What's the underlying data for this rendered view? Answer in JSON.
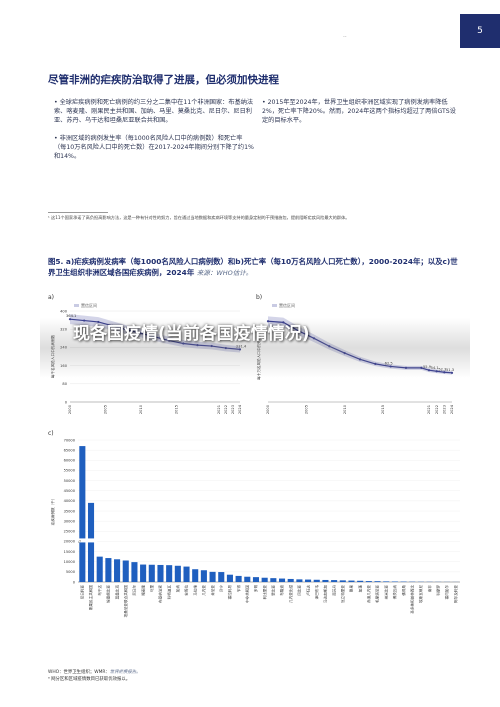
{
  "header": {
    "dots": "··",
    "page_number": "5"
  },
  "title": "尽管非洲的疟疾防治取得了进展，但必须加快进程",
  "bullets_left": [
    "• 全球疟疾病例和死亡病例的约三分之二集中在11个非洲国家：布基纳法索、喀麦隆、刚果民主共和国、加纳、马里、莫桑比克、尼日尔、尼日利亚、苏丹、乌干达和坦桑尼亚联合共和国。",
    "• 非洲区域的病例发生率（每1000名风险人口中的病例数）和死亡率（每10万名风险人口中的死亡数）在2017-2024年期间分别下降了约1%和14%。"
  ],
  "bullets_right": [
    "• 2015年至2024年，世界卫生组织非洲区域实现了病例发病率降低2%，死亡率下降20%。然而，2024年这两个指标均超过了两倍GTS设定的目标水平。"
  ],
  "footnote": "¹ 这11个国家承诺了高负担高影响方法，这是一种有针对性的努力，旨在通过当地数据和疾病环境等支持的量身定制的干预措施包，提前阻断疟疾风险最大的群体。",
  "figure_title": "图5. a)疟疾病例发病率（每1000名风险人口病例数）和b)死亡率（每10万名风险人口死亡数），2000-2024年；以及c)世界卫生组织非洲区域各国疟疾病例，2024年",
  "figure_source": "来源：WHO估计。",
  "overlay_text": "现各国疫情(当前各国疫情情况)",
  "notes": {
    "line1_prefix": "WHO：世界卫生组织；WMR：",
    "line1_italic": "世界疟疾报告。",
    "line2": "ᵃ 网分区和区域疫情数目已获取优效报以。"
  },
  "colors": {
    "navy": "#1f2e6e",
    "line": "#3a3f8f",
    "band": "#c9cbe3",
    "bar": "#1f5fbf",
    "bar_light": "#5f8fd8"
  },
  "chart_data": [
    {
      "panel": "a)",
      "type": "line",
      "legend": [
        "置信区间"
      ],
      "ylabel": "每千名风险人口中的病例数",
      "ylim": [
        0,
        400
      ],
      "yticks": [
        0,
        80,
        160,
        240,
        320,
        400
      ],
      "xticks": [
        "2000",
        "2005",
        "2010",
        "2015",
        "2021",
        "2022",
        "2023",
        "2024"
      ],
      "x": [
        2000,
        2002,
        2004,
        2006,
        2008,
        2010,
        2012,
        2014,
        2016,
        2018,
        2020,
        2022,
        2024
      ],
      "y": [
        364.1,
        358,
        352,
        335,
        318,
        302,
        286,
        270,
        257,
        250,
        246,
        237,
        231.4
      ],
      "labels": [
        "364.1",
        "231.4"
      ]
    },
    {
      "panel": "b)",
      "type": "line",
      "legend": [
        "置信区间"
      ],
      "ylabel": "每十万名风险人口中的死亡数",
      "ylim": [
        0,
        160
      ],
      "xticks": [
        "2000",
        "2005",
        "2010",
        "2015",
        "2021",
        "2022",
        "2023",
        "2024"
      ],
      "x": [
        2000,
        2002,
        2004,
        2006,
        2008,
        2010,
        2012,
        2014,
        2016,
        2018,
        2020,
        2021,
        2022,
        2023,
        2024
      ],
      "y": [
        142,
        140,
        125,
        112,
        98,
        86,
        75,
        67,
        62.5,
        60,
        60,
        55.9,
        54.1,
        52.3,
        51.3
      ],
      "labels": [
        "62.5",
        "55.9",
        "54.1",
        "52.3",
        "51.3"
      ]
    },
    {
      "panel": "c)",
      "type": "bar",
      "ylabel": "疟疾病例数（千）",
      "yticks": [
        0,
        5000,
        10000,
        15000,
        20000,
        25000,
        30000,
        35000,
        40000,
        45000,
        50000,
        55000,
        60000,
        65000,
        70000
      ],
      "axis_break": true,
      "categories": [
        "尼日利亚",
        "刚果民主共和国",
        "乌干达",
        "埃塞俄比亚",
        "莫桑比克",
        "坦桑尼亚联合共和国",
        "尼日尔",
        "喀麦隆",
        "马里",
        "布基纳法索",
        "科特迪瓦",
        "加纳",
        "安哥拉",
        "马拉维",
        "几内亚",
        "肯尼亚",
        "贝宁",
        "塞拉利昂",
        "乍得",
        "中非共和国",
        "多哥",
        "利比里亚",
        "赞比亚",
        "布隆迪",
        "几内亚比绍",
        "冈比亚",
        "卢旺达",
        "津巴布韦",
        "马达加斯加",
        "南苏丹",
        "厄立特里亚",
        "刚果",
        "加蓬",
        "赤道几内亚",
        "毛里塔尼亚",
        "纳米比亚",
        "博茨瓦纳",
        "佛得角",
        "圣多美和普林西比",
        "埃斯瓦蒂尼",
        "南非",
        "科摩罗",
        "塞内加尔",
        "阿尔及利亚"
      ],
      "values": [
        67000,
        39000,
        12500,
        11800,
        11200,
        10600,
        9800,
        8600,
        8500,
        8400,
        8300,
        8000,
        7600,
        6300,
        5800,
        5000,
        4900,
        3600,
        3000,
        2600,
        2400,
        2100,
        1900,
        1700,
        1500,
        1300,
        1200,
        1100,
        1000,
        950,
        800,
        700,
        600,
        450,
        400,
        300,
        250,
        200,
        150,
        120,
        100,
        80,
        60,
        40
      ]
    }
  ]
}
